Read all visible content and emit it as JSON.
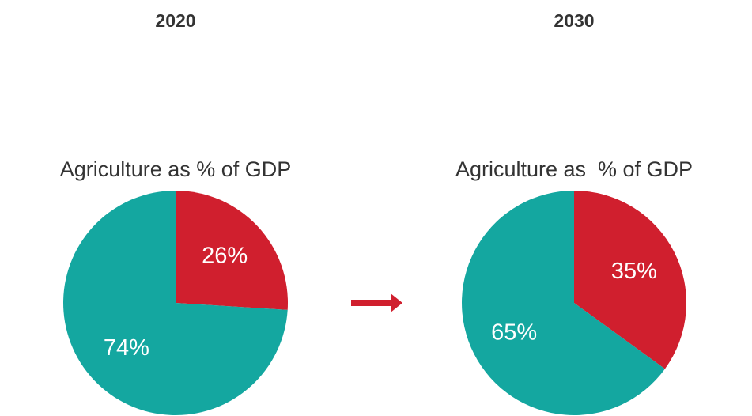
{
  "chart_data": [
    {
      "type": "pie",
      "title": "2020",
      "subtitle": "Agriculture as % of GDP",
      "values": [
        26,
        74
      ],
      "value_labels": [
        "26%",
        "74%"
      ],
      "colors": [
        "#d01f2e",
        "#14a7a0"
      ]
    },
    {
      "type": "pie",
      "title": "2030",
      "subtitle": "Agriculture as  % of GDP",
      "values": [
        35,
        65
      ],
      "value_labels": [
        "35%",
        "65%"
      ],
      "colors": [
        "#d01f2e",
        "#14a7a0"
      ]
    }
  ]
}
